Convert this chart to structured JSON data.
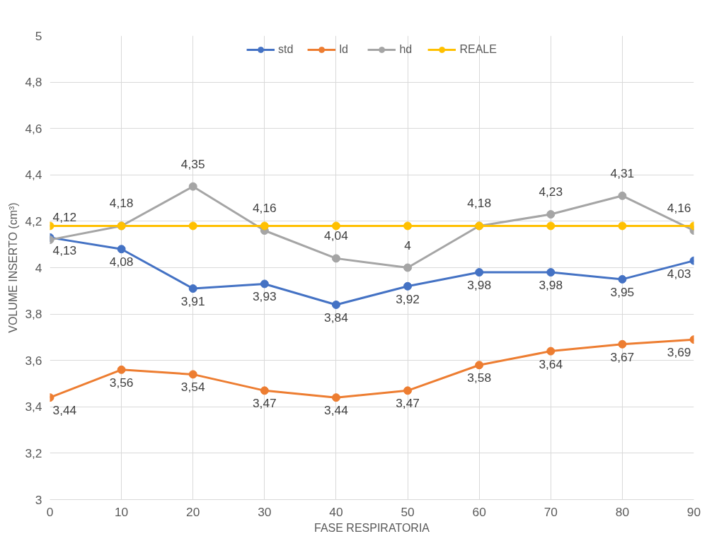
{
  "chart_data": {
    "type": "line",
    "xlabel": "FASE RESPIRATORIA",
    "ylabel": "VOLUME INSERTO (cm³)",
    "x": [
      0,
      10,
      20,
      30,
      40,
      50,
      60,
      70,
      80,
      90
    ],
    "xlim": [
      0,
      90
    ],
    "xticks": [
      0,
      10,
      20,
      30,
      40,
      50,
      60,
      70,
      80,
      90
    ],
    "ylim": [
      3,
      5
    ],
    "yticks": [
      {
        "value": 3,
        "label": "3"
      },
      {
        "value": 3.2,
        "label": "3,2"
      },
      {
        "value": 3.4,
        "label": "3,4"
      },
      {
        "value": 3.6,
        "label": "3,6"
      },
      {
        "value": 3.8,
        "label": "3,8"
      },
      {
        "value": 4,
        "label": "4"
      },
      {
        "value": 4.2,
        "label": "4,2"
      },
      {
        "value": 4.4,
        "label": "4,4"
      },
      {
        "value": 4.6,
        "label": "4,6"
      },
      {
        "value": 4.8,
        "label": "4,8"
      },
      {
        "value": 5,
        "label": "5"
      }
    ],
    "grid": true,
    "legend": "top",
    "marker": "circle",
    "line_style": "solid",
    "series": [
      {
        "name": "std",
        "color": "#4472c4",
        "values": [
          4.13,
          4.08,
          3.91,
          3.93,
          3.84,
          3.92,
          3.98,
          3.98,
          3.95,
          4.03
        ],
        "value_labels": [
          "4,13",
          "4,08",
          "3,91",
          "3,93",
          "3,84",
          "3,92",
          "3,98",
          "3,98",
          "3,95",
          "4,03"
        ]
      },
      {
        "name": "ld",
        "color": "#ed7d31",
        "values": [
          3.44,
          3.56,
          3.54,
          3.47,
          3.44,
          3.47,
          3.58,
          3.64,
          3.67,
          3.69
        ],
        "value_labels": [
          "3,44",
          "3,56",
          "3,54",
          "3,47",
          "3,44",
          "3,47",
          "3,58",
          "3,64",
          "3,67",
          "3,69"
        ]
      },
      {
        "name": "hd",
        "color": "#a5a5a5",
        "values": [
          4.12,
          4.18,
          4.35,
          4.16,
          4.04,
          4.0,
          4.18,
          4.23,
          4.31,
          4.16
        ],
        "value_labels": [
          "4,12",
          "4,18",
          "4,35",
          "4,16",
          "4,04",
          "4",
          "4,18",
          "4,23",
          "4,31",
          "4,16"
        ]
      },
      {
        "name": "REALE",
        "color": "#ffc000",
        "values": [
          4.18,
          4.18,
          4.18,
          4.18,
          4.18,
          4.18,
          4.18,
          4.18,
          4.18,
          4.18
        ]
      }
    ]
  }
}
